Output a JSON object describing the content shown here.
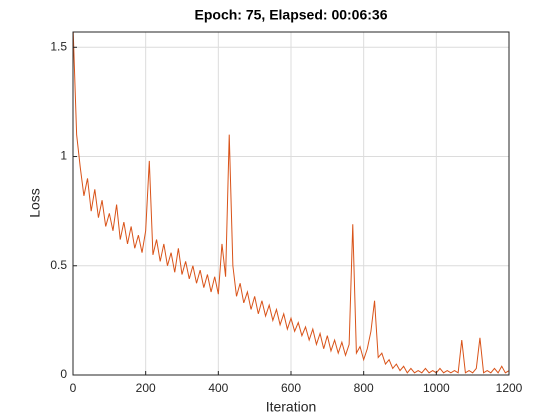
{
  "chart_data": {
    "type": "line",
    "title": "Epoch: 75, Elapsed: 00:06:36",
    "x_label": "Iteration",
    "y_label": "Loss",
    "xlim": [
      0,
      1200
    ],
    "xticks": [
      0,
      200,
      400,
      600,
      800,
      1000,
      1200
    ],
    "ylim": [
      0,
      1.57
    ],
    "yticks": [
      0,
      0.5,
      1,
      1.5
    ],
    "grid": true,
    "x": [
      0,
      10,
      20,
      30,
      40,
      50,
      60,
      70,
      80,
      90,
      100,
      110,
      120,
      130,
      140,
      150,
      160,
      170,
      180,
      190,
      200,
      210,
      220,
      230,
      240,
      250,
      260,
      270,
      280,
      290,
      300,
      310,
      320,
      330,
      340,
      350,
      360,
      370,
      380,
      390,
      400,
      410,
      420,
      430,
      440,
      450,
      460,
      470,
      480,
      490,
      500,
      510,
      520,
      530,
      540,
      550,
      560,
      570,
      580,
      590,
      600,
      610,
      620,
      630,
      640,
      650,
      660,
      670,
      680,
      690,
      700,
      710,
      720,
      730,
      740,
      750,
      760,
      770,
      780,
      790,
      800,
      810,
      820,
      830,
      840,
      850,
      860,
      870,
      880,
      890,
      900,
      910,
      920,
      930,
      940,
      950,
      960,
      970,
      980,
      990,
      1000,
      1010,
      1020,
      1030,
      1040,
      1050,
      1060,
      1070,
      1080,
      1090,
      1100,
      1110,
      1120,
      1130,
      1140,
      1150,
      1160,
      1170,
      1180,
      1190,
      1200
    ],
    "series": [
      {
        "color": "#d95319",
        "values": [
          1.6,
          1.1,
          0.95,
          0.82,
          0.9,
          0.75,
          0.85,
          0.72,
          0.8,
          0.68,
          0.74,
          0.66,
          0.78,
          0.62,
          0.7,
          0.6,
          0.68,
          0.58,
          0.64,
          0.56,
          0.66,
          0.98,
          0.55,
          0.62,
          0.52,
          0.6,
          0.5,
          0.56,
          0.47,
          0.58,
          0.46,
          0.52,
          0.44,
          0.5,
          0.42,
          0.48,
          0.4,
          0.46,
          0.38,
          0.45,
          0.37,
          0.6,
          0.45,
          1.1,
          0.5,
          0.36,
          0.42,
          0.33,
          0.38,
          0.3,
          0.36,
          0.28,
          0.34,
          0.27,
          0.32,
          0.25,
          0.3,
          0.23,
          0.28,
          0.21,
          0.26,
          0.2,
          0.24,
          0.18,
          0.22,
          0.16,
          0.21,
          0.14,
          0.19,
          0.12,
          0.18,
          0.11,
          0.16,
          0.1,
          0.15,
          0.09,
          0.14,
          0.69,
          0.1,
          0.13,
          0.07,
          0.12,
          0.2,
          0.34,
          0.08,
          0.1,
          0.05,
          0.07,
          0.03,
          0.05,
          0.02,
          0.04,
          0.01,
          0.03,
          0.01,
          0.02,
          0.01,
          0.03,
          0.01,
          0.02,
          0.01,
          0.03,
          0.01,
          0.02,
          0.01,
          0.02,
          0.01,
          0.16,
          0.01,
          0.02,
          0.01,
          0.03,
          0.17,
          0.01,
          0.02,
          0.01,
          0.03,
          0.01,
          0.04,
          0.01,
          0.02
        ]
      }
    ]
  }
}
